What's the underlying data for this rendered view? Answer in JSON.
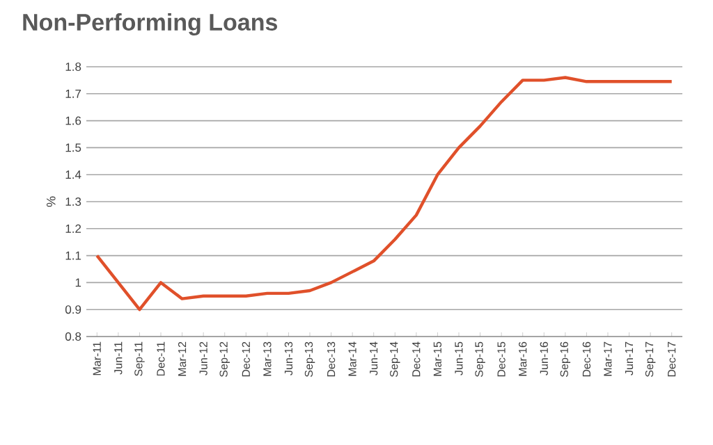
{
  "chart_data": {
    "type": "line",
    "title": "Non-Performing Loans",
    "ylabel": "%",
    "categories": [
      "Mar-11",
      "Jun-11",
      "Sep-11",
      "Dec-11",
      "Mar-12",
      "Jun-12",
      "Sep-12",
      "Dec-12",
      "Mar-13",
      "Jun-13",
      "Sep-13",
      "Dec-13",
      "Mar-14",
      "Jun-14",
      "Sep-14",
      "Dec-14",
      "Mar-15",
      "Jun-15",
      "Sep-15",
      "Dec-15",
      "Mar-16",
      "Jun-16",
      "Sep-16",
      "Dec-16",
      "Mar-17",
      "Jun-17",
      "Sep-17",
      "Dec-17"
    ],
    "values": [
      1.1,
      1.0,
      0.9,
      1.0,
      0.94,
      0.95,
      0.95,
      0.95,
      0.96,
      0.96,
      0.97,
      1.0,
      1.04,
      1.08,
      1.16,
      1.25,
      1.4,
      1.5,
      1.58,
      1.67,
      1.75,
      1.75,
      1.76,
      1.745,
      1.745,
      1.745,
      1.745,
      1.745
    ],
    "color": "#e0502a",
    "ylim": [
      0.8,
      1.8
    ],
    "yticks": [
      0.8,
      0.9,
      1,
      1.1,
      1.2,
      1.3,
      1.4,
      1.5,
      1.6,
      1.7,
      1.8
    ],
    "grid": "y",
    "marker": "none",
    "line_style": "solid"
  }
}
